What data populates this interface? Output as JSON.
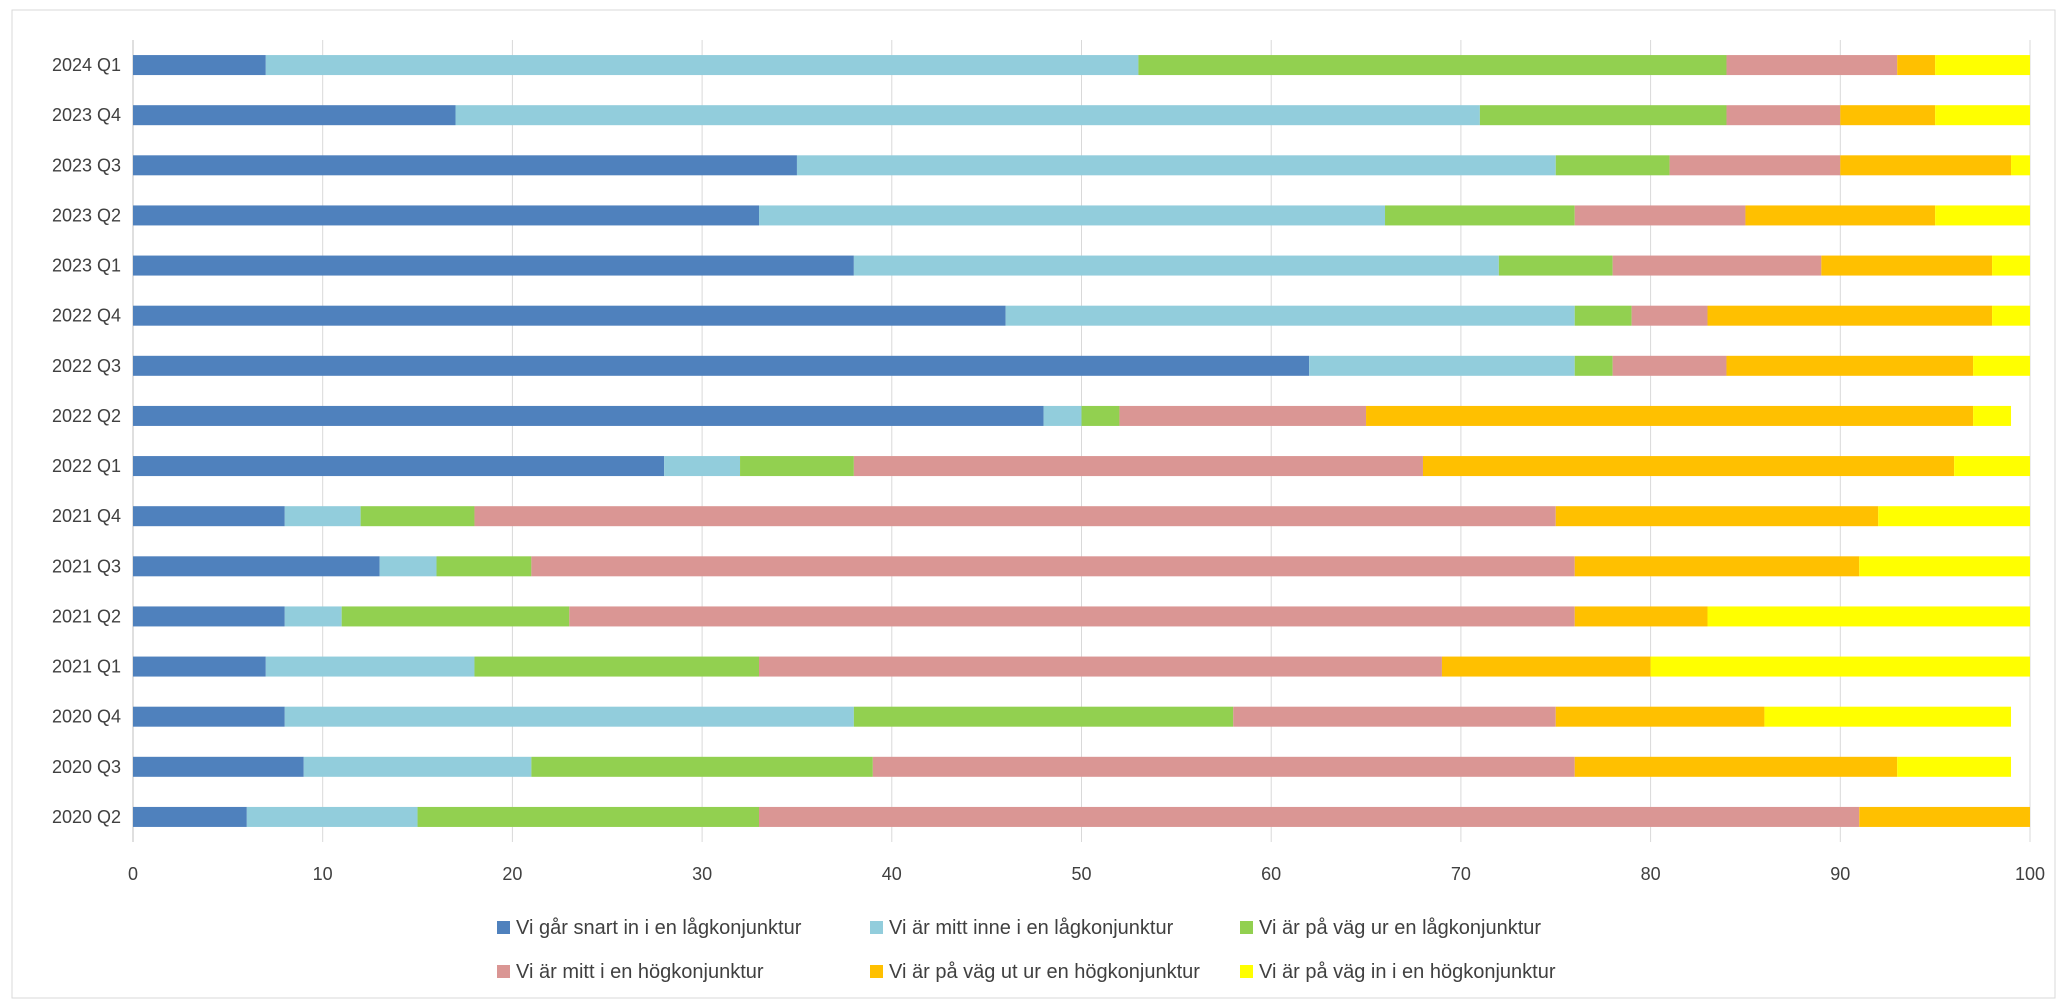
{
  "chart_data": {
    "type": "bar",
    "orientation": "horizontal",
    "stacked": true,
    "title": "",
    "xlabel": "",
    "ylabel": "",
    "xlim": [
      0,
      100
    ],
    "xticks": [
      0,
      10,
      20,
      30,
      40,
      50,
      60,
      70,
      80,
      90,
      100
    ],
    "grid": true,
    "legend_position": "bottom",
    "categories": [
      "2024 Q1",
      "2023 Q4",
      "2023 Q3",
      "2023 Q2",
      "2023 Q1",
      "2022 Q4",
      "2022 Q3",
      "2022 Q2",
      "2022 Q1",
      "2021 Q4",
      "2021 Q3",
      "2021 Q2",
      "2021 Q1",
      "2020 Q4",
      "2020 Q3",
      "2020 Q2"
    ],
    "series": [
      {
        "name": "Vi går snart in i en lågkonjunktur",
        "color": "#4f81bd",
        "values": [
          7,
          17,
          35,
          33,
          38,
          46,
          62,
          48,
          28,
          8,
          13,
          8,
          7,
          8,
          9,
          6
        ]
      },
      {
        "name": "Vi är mitt inne i en lågkonjunktur",
        "color": "#92cddc",
        "values": [
          46,
          54,
          40,
          33,
          34,
          30,
          14,
          2,
          4,
          4,
          3,
          3,
          11,
          30,
          12,
          9
        ]
      },
      {
        "name": "Vi är på väg ur en lågkonjunktur",
        "color": "#92d050",
        "values": [
          31,
          13,
          6,
          10,
          6,
          3,
          2,
          2,
          6,
          6,
          5,
          12,
          15,
          20,
          18,
          18
        ]
      },
      {
        "name": "Vi är mitt i en högkonjunktur",
        "color": "#da9694",
        "values": [
          9,
          6,
          9,
          9,
          11,
          4,
          6,
          13,
          30,
          57,
          55,
          53,
          36,
          17,
          37,
          58
        ]
      },
      {
        "name": "Vi är på väg ut ur en högkonjunktur",
        "color": "#ffc000",
        "values": [
          2,
          5,
          9,
          10,
          9,
          15,
          13,
          32,
          28,
          17,
          15,
          7,
          11,
          11,
          17,
          9
        ]
      },
      {
        "name": "Vi är på väg in i en högkonjunktur",
        "color": "#ffff00",
        "values": [
          5,
          5,
          1,
          5,
          2,
          2,
          3,
          2,
          4,
          8,
          9,
          17,
          20,
          13,
          6,
          0
        ]
      }
    ]
  }
}
